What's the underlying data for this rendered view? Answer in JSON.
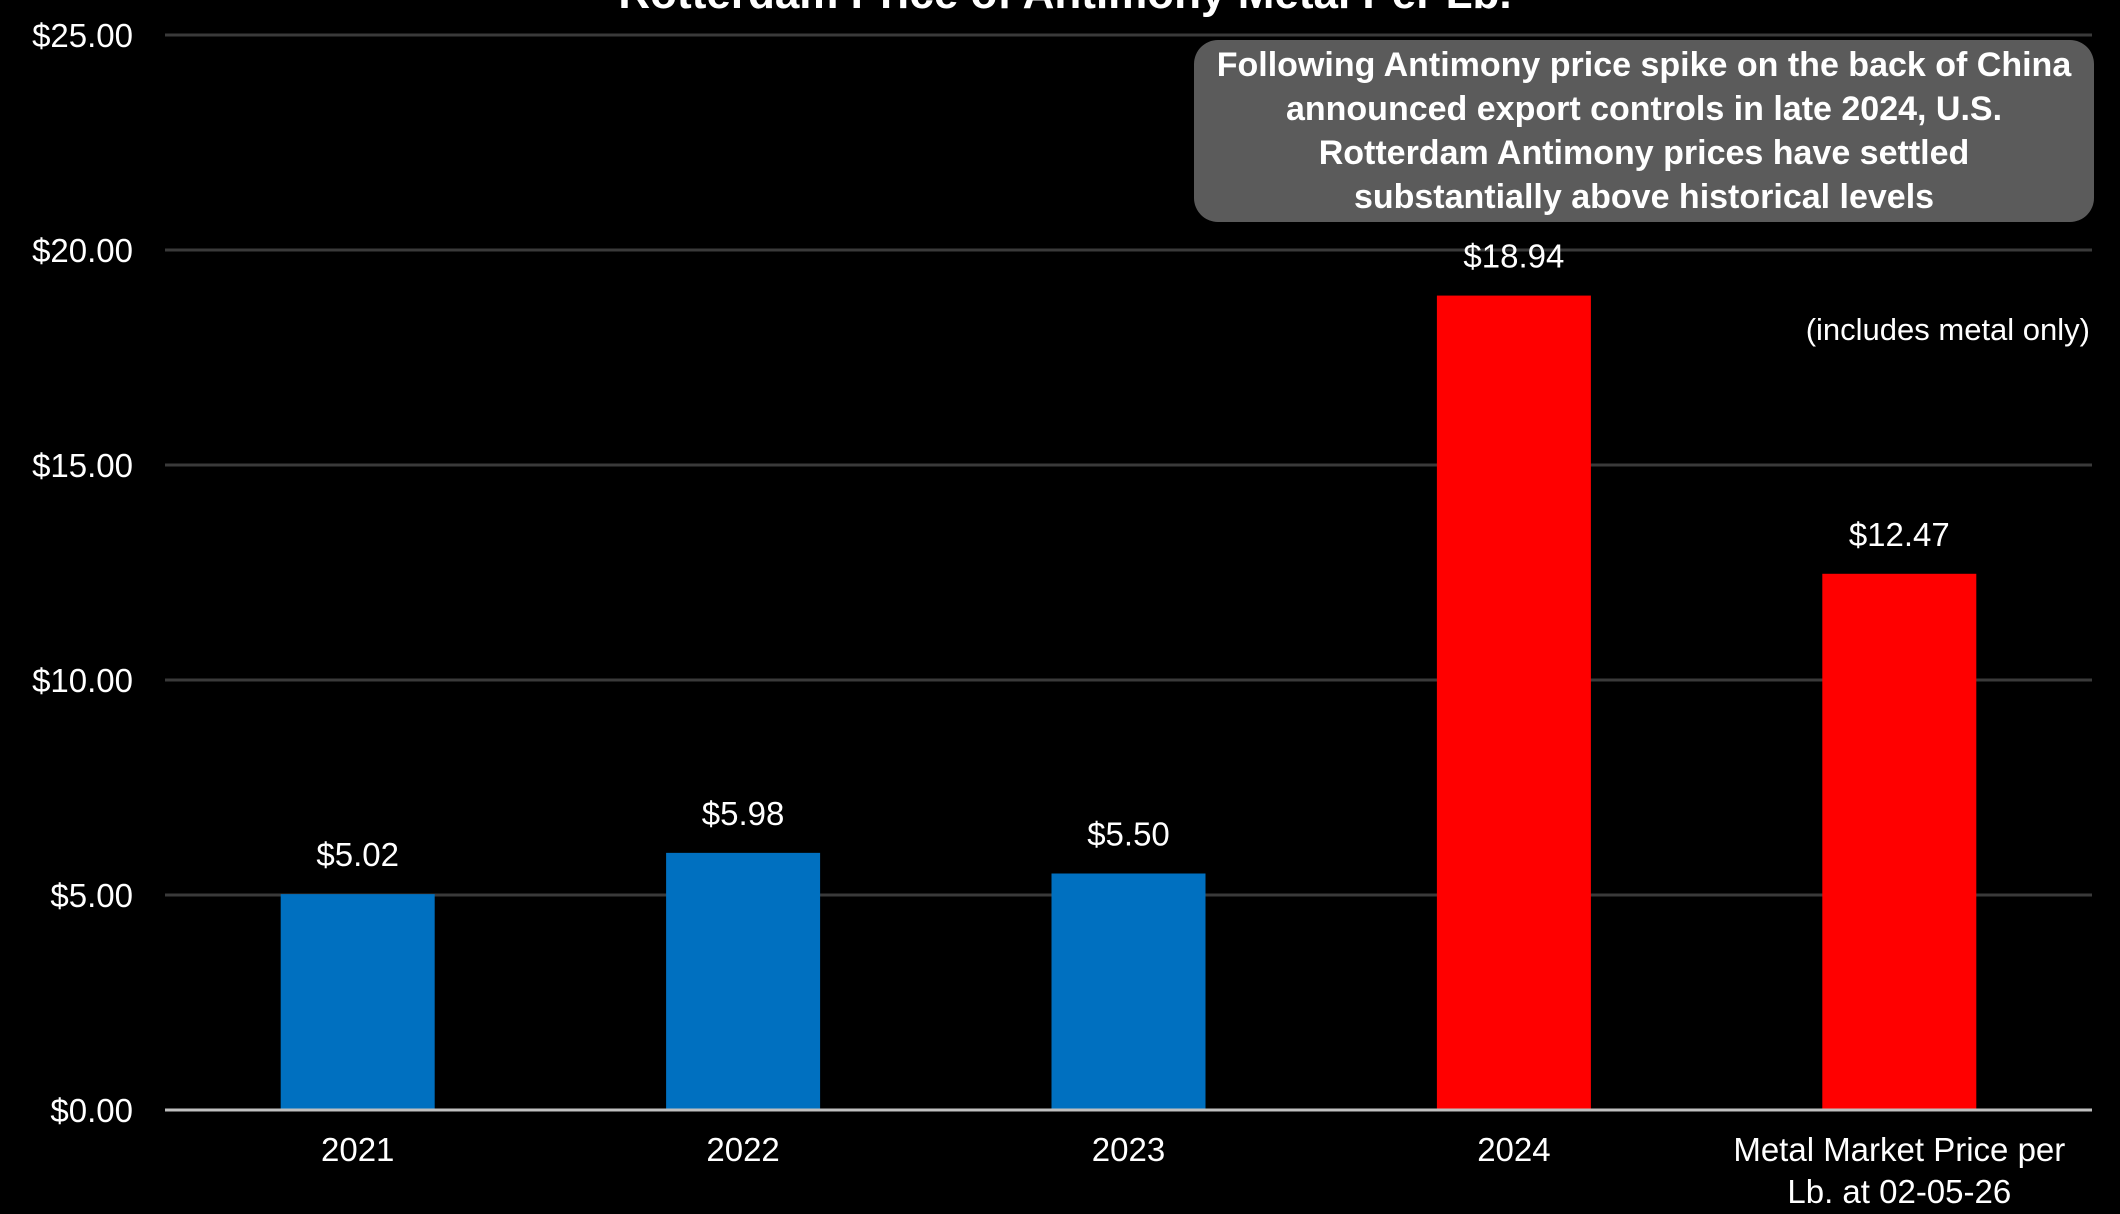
{
  "chart_data": {
    "type": "bar",
    "title": "Rotterdam Price of Antimony Metal Per Lb.",
    "categories": [
      "2021",
      "2022",
      "2023",
      "2024",
      "Metal Market Price per Lb. at 02-05-26"
    ],
    "category_lines": [
      [
        "2021"
      ],
      [
        "2022"
      ],
      [
        "2023"
      ],
      [
        "2024"
      ],
      [
        "Metal Market Price per",
        "Lb. at 02-05-26"
      ]
    ],
    "values": [
      5.02,
      5.98,
      5.5,
      18.94,
      12.47
    ],
    "data_labels": [
      "$5.02",
      "$5.98",
      "$5.50",
      "$18.94",
      "$12.47"
    ],
    "bar_colors": [
      "#0070c0",
      "#0070c0",
      "#0070c0",
      "#ff0000",
      "#ff0000"
    ],
    "ylim": [
      0,
      25
    ],
    "y_ticks": [
      0,
      5,
      10,
      15,
      20,
      25
    ],
    "y_tick_labels": [
      "$0.00",
      "$5.00",
      "$10.00",
      "$15.00",
      "$20.00",
      "$25.00"
    ],
    "grid": true,
    "xlabel": "",
    "ylabel": ""
  },
  "annotations": {
    "callout": "Following Antimony price spike on the back of China announced export controls in late 2024, U.S. Rotterdam Antimony prices have settled substantially above historical levels",
    "note": "(includes metal only)"
  },
  "colors": {
    "background": "#000000",
    "gridline": "#3a3a3a",
    "axis": "#bfbfbf",
    "text": "#ffffff",
    "callout_bg": "#5b5b5b",
    "blue_bar": "#0070c0",
    "red_bar": "#ff0000"
  }
}
